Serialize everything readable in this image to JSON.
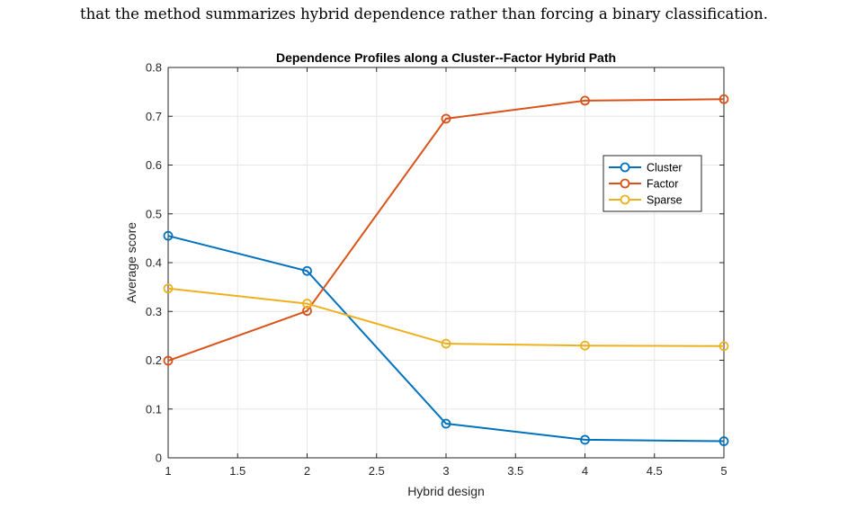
{
  "page": {
    "caption_line": "that the method summarizes hybrid dependence rather than forcing a binary classification."
  },
  "chart_data": {
    "type": "line",
    "title": "Dependence Profiles along a Cluster--Factor Hybrid Path",
    "xlabel": "Hybrid design",
    "ylabel": "Average score",
    "x": [
      1,
      2,
      3,
      4,
      5
    ],
    "xlim": [
      1,
      5
    ],
    "ylim": [
      0,
      0.8
    ],
    "xticks": [
      1,
      1.5,
      2,
      2.5,
      3,
      3.5,
      4,
      4.5,
      5
    ],
    "xtick_labels": [
      "1",
      "1.5",
      "2",
      "2.5",
      "3",
      "3.5",
      "4",
      "4.5",
      "5"
    ],
    "yticks": [
      0,
      0.1,
      0.2,
      0.3,
      0.4,
      0.5,
      0.6,
      0.7,
      0.8
    ],
    "ytick_labels": [
      "0",
      "0.1",
      "0.2",
      "0.3",
      "0.4",
      "0.5",
      "0.6",
      "0.7",
      "0.8"
    ],
    "grid": true,
    "legend_position": "right-upper",
    "marker": "circle",
    "series": [
      {
        "name": "Cluster",
        "color": "#0072BD",
        "values": [
          0.455,
          0.383,
          0.07,
          0.037,
          0.034
        ]
      },
      {
        "name": "Factor",
        "color": "#D95319",
        "values": [
          0.199,
          0.301,
          0.695,
          0.732,
          0.735
        ]
      },
      {
        "name": "Sparse",
        "color": "#EDB120",
        "values": [
          0.347,
          0.316,
          0.234,
          0.23,
          0.229
        ]
      }
    ]
  }
}
